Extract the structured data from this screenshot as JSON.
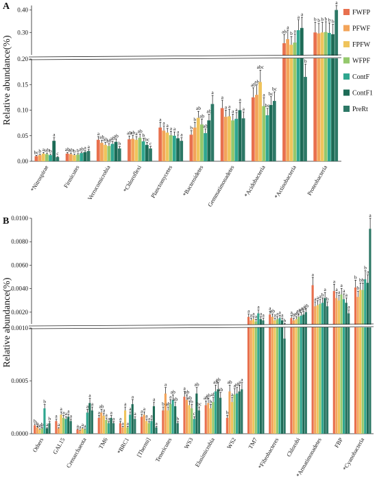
{
  "chart_data": [
    {
      "type": "bar",
      "panel_label": "A",
      "ylabel": "Relative abundance(%)",
      "y_axis_break": {
        "lower": [
          0,
          0.2
        ],
        "upper": [
          0.2,
          0.42
        ]
      },
      "y_ticks_lower": [
        "0.00",
        "0.05",
        "0.10",
        "0.15",
        "0.20"
      ],
      "y_ticks_upper": [
        "0.30",
        "0.40"
      ],
      "legend": {
        "position": "top-right"
      },
      "categories": [
        "*Nitrospirae",
        "Firmicutes",
        "Verrucomicrobia",
        "*Chloroflexi",
        "Planctomycetes",
        "*Bacteroidetes",
        "Gemmatimonadetes",
        "*Acidobacteria",
        "*Actinobacteria",
        "Proteobacteria"
      ],
      "series": [
        {
          "name": "FWFP",
          "color": "#e8704e",
          "values": [
            0.01,
            0.015,
            0.042,
            0.043,
            0.066,
            0.052,
            0.104,
            0.125,
            0.252,
            0.3
          ],
          "labels": [
            "bc",
            "ab",
            "a",
            "ab",
            "a",
            "b",
            "a",
            "ab",
            "ab",
            "b"
          ]
        },
        {
          "name": "PFWF",
          "color": "#f3a45a",
          "values": [
            0.012,
            0.014,
            0.036,
            0.044,
            0.06,
            0.066,
            0.087,
            0.13,
            0.27,
            0.296
          ],
          "labels": [
            "b",
            "ab",
            "ab",
            "ab",
            "a",
            "b",
            "a",
            "ab",
            "a",
            "b"
          ]
        },
        {
          "name": "FPFW",
          "color": "#efc45c",
          "values": [
            0.015,
            0.012,
            0.032,
            0.042,
            0.056,
            0.085,
            0.088,
            0.155,
            0.245,
            0.3
          ],
          "labels": [
            "a",
            "b",
            "ab",
            "a",
            "a",
            "ab",
            "a",
            "abc",
            "b",
            "b"
          ]
        },
        {
          "name": "WFPF",
          "color": "#94c86c",
          "values": [
            0.014,
            0.013,
            0.03,
            0.046,
            0.051,
            0.072,
            0.08,
            0.108,
            0.255,
            0.302
          ],
          "labels": [
            "ab",
            "b",
            "ab",
            "ab",
            "a",
            "ab",
            "a",
            "a",
            "a",
            "b"
          ]
        },
        {
          "name": "ContF",
          "color": "#2fa68f",
          "values": [
            0.012,
            0.016,
            0.034,
            0.039,
            0.05,
            0.055,
            0.083,
            0.09,
            0.31,
            0.298
          ],
          "labels": [
            "b",
            "ab",
            "ab",
            "b",
            "a",
            "ab",
            "a",
            "bc",
            "a",
            "b"
          ]
        },
        {
          "name": "ContF1",
          "color": "#1d6b56",
          "values": [
            0.04,
            0.018,
            0.038,
            0.032,
            0.045,
            0.08,
            0.1,
            0.11,
            0.32,
            0.292
          ],
          "labels": [
            "a",
            "a",
            "ab",
            "bc",
            "a",
            "ab",
            "a",
            "bc",
            "a",
            "b"
          ]
        },
        {
          "name": "PreRt",
          "color": "#2d7866",
          "values": [
            0.008,
            0.02,
            0.025,
            0.025,
            0.04,
            0.112,
            0.084,
            0.118,
            0.165,
            0.4
          ],
          "labels": [
            "c",
            "a",
            "b",
            "c",
            "a",
            "a",
            "a",
            "bc",
            "b",
            "a"
          ]
        }
      ]
    },
    {
      "type": "bar",
      "panel_label": "B",
      "ylabel": "Relative abundance(%)",
      "y_axis_break": {
        "lower": [
          0,
          0.001
        ],
        "upper": [
          0.001,
          0.01
        ]
      },
      "y_ticks_lower": [
        "0.0000",
        "0.0005",
        "0.0010"
      ],
      "y_ticks_upper": [
        "0.0020",
        "0.0040",
        "0.0060",
        "0.0080",
        "0.0100"
      ],
      "categories": [
        "Others",
        "GAL15",
        "Crenarchaeota",
        "TM6",
        "*BRC1",
        "[Thermi]",
        "Tenericutes",
        "WS3",
        "Elusimicrobia",
        "WS2",
        "TM7",
        "*Fibrobacteres",
        "Chlorobi",
        "*Armatimonadetes",
        "FBP",
        "*Cyanobacteria"
      ],
      "series": [
        {
          "name": "FWFP",
          "color": "#e8704e",
          "values": [
            8e-05,
            0.00012,
            4e-05,
            0.00015,
            0.0001,
            0.00016,
            0.00022,
            0.00035,
            0.00027,
            0.00015,
            0.0016,
            0.0018,
            0.0015,
            0.0043,
            0.0038,
            0.0041
          ],
          "labels": [
            "b",
            "a",
            "a",
            "a",
            "a",
            "a",
            "b",
            "a",
            "ab",
            "b",
            "a",
            "a",
            "a",
            "a",
            "a",
            "b"
          ]
        },
        {
          "name": "PFWF",
          "color": "#f3a45a",
          "values": [
            6e-05,
            5e-05,
            3e-05,
            0.0002,
            6e-05,
            0.00018,
            0.00038,
            0.00032,
            0.00029,
            0.0004,
            0.0013,
            0.0016,
            0.0013,
            0.0025,
            0.0032,
            0.0033
          ],
          "labels": [
            "b",
            "a",
            "a",
            "ab",
            "a",
            "a",
            "a",
            "ab",
            "ab",
            "ab",
            "a",
            "ab",
            "b",
            "a",
            "a",
            "b"
          ]
        },
        {
          "name": "FPFW",
          "color": "#efc45c",
          "values": [
            4e-05,
            0.00018,
            5e-05,
            0.00017,
            0.00022,
            0.00012,
            0.00022,
            0.00027,
            0.00024,
            0.0003,
            0.0014,
            0.0013,
            0.0014,
            0.0026,
            0.003,
            0.0039
          ],
          "labels": [
            "bb",
            "a",
            "a",
            "a",
            "a",
            "a",
            "ab",
            "ab",
            "b",
            "a",
            "a",
            "a",
            "ab",
            "a",
            "a",
            "b"
          ]
        },
        {
          "name": "WFPF",
          "color": "#94c86c",
          "values": [
            5e-05,
            0.00015,
            4e-05,
            0.00013,
            6e-05,
            0.0001,
            0.00028,
            0.00024,
            0.0003,
            0.00037,
            0.0012,
            0.0014,
            0.0016,
            0.0027,
            0.0035,
            0.0039
          ],
          "labels": [
            "b",
            "a",
            "a",
            "a",
            "a",
            "a",
            "a",
            "b",
            "ab",
            "a",
            "a",
            "a",
            "ab",
            "a",
            "a",
            "b"
          ]
        },
        {
          "name": "ContF",
          "color": "#2fa68f",
          "values": [
            0.00024,
            0.00014,
            0.0002,
            0.0001,
            0.00018,
            0.00012,
            0.00032,
            0.00014,
            0.0004,
            0.00038,
            0.0019,
            0.0015,
            0.0017,
            0.0028,
            0.0031,
            0.0048
          ],
          "labels": [
            "b",
            "a",
            "a",
            "a",
            "a",
            "a",
            "ab",
            "c",
            "ab",
            "ab",
            "a",
            "a",
            "ab",
            "b",
            "a",
            "b"
          ]
        },
        {
          "name": "ContF1",
          "color": "#1d6b56",
          "values": [
            5e-05,
            0.00016,
            0.00029,
            0.00015,
            0.00028,
            0.00026,
            0.00026,
            0.00038,
            0.00042,
            0.0004,
            0.0014,
            0.0013,
            0.0018,
            0.0032,
            0.0028,
            0.0045
          ],
          "labels": [
            "a",
            "a",
            "a",
            "a",
            "a",
            "a",
            "ab",
            "ab",
            "ab",
            "a",
            "a",
            "a",
            "ab",
            "a",
            "a",
            "a"
          ]
        },
        {
          "name": "PreRt",
          "color": "#2d7866",
          "values": [
            0.0001,
            0.00012,
            0.00022,
            0.0001,
            0.00014,
            6e-05,
            0.0001,
            0.00022,
            0.00034,
            0.00042,
            0.0013,
            0.0009,
            0.002,
            0.0025,
            0.0019,
            0.0091
          ],
          "labels": [
            "b",
            "a",
            "a",
            "a",
            "a",
            "a",
            "b",
            "bc",
            "ab",
            "a",
            "a",
            "b",
            "ab",
            "b",
            "a",
            "a"
          ]
        }
      ]
    }
  ]
}
